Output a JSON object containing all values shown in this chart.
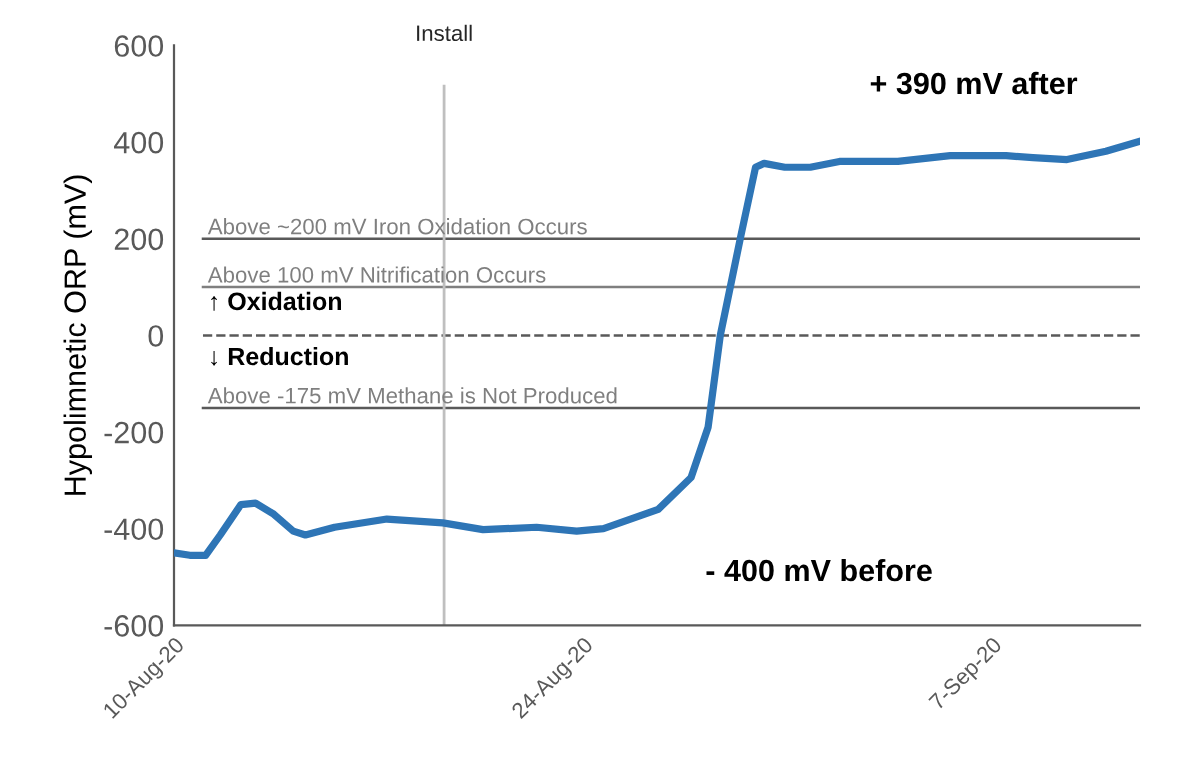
{
  "chart_data": {
    "type": "line",
    "ylabel": "Hypolimnetic ORP (mV)",
    "x": [
      "2020-08-10T00:00",
      "2020-08-10T13:00",
      "2020-08-11T02:00",
      "2020-08-11T14:00",
      "2020-08-12T07:00",
      "2020-08-12T19:00",
      "2020-08-13T10:00",
      "2020-08-14T02:00",
      "2020-08-14T12:00",
      "2020-08-15T12:00",
      "2020-08-17T07:00",
      "2020-08-19T05:00",
      "2020-08-20T14:00",
      "2020-08-22T10:00",
      "2020-08-23T19:00",
      "2020-08-24T17:00",
      "2020-08-26T14:00",
      "2020-08-27T17:00",
      "2020-08-28T07:00",
      "2020-08-28T17:00",
      "2020-08-29T10:00",
      "2020-08-29T22:00",
      "2020-08-30T05:00",
      "2020-08-30T22:00",
      "2020-08-31T19:00",
      "2020-09-01T19:00",
      "2020-09-03T19:00",
      "2020-09-05T14:00",
      "2020-09-07T12:00",
      "2020-09-08T10:00",
      "2020-09-09T14:00",
      "2020-09-10T22:00",
      "2020-09-12T02:00"
    ],
    "series": [
      {
        "color": "#2e75b6",
        "values": [
          -450,
          -455,
          -455,
          -413,
          -350,
          -347,
          -370,
          -405,
          -413,
          -397,
          -380,
          -388,
          -402,
          -397,
          -405,
          -400,
          -360,
          -294,
          -190,
          0,
          207,
          348,
          356,
          348,
          348,
          360,
          360,
          372,
          372,
          368,
          364,
          381,
          402
        ]
      }
    ],
    "xlim": [
      "2020-08-10",
      "2020-09-12T02:00"
    ],
    "xticks": [
      {
        "value": "2020-08-10",
        "label": "10-Aug-20"
      },
      {
        "value": "2020-08-24",
        "label": "24-Aug-20"
      },
      {
        "value": "2020-09-07",
        "label": "7-Sep-20"
      }
    ],
    "ylim": [
      -600,
      600
    ],
    "yticks": [
      -600,
      -400,
      -200,
      0,
      200,
      400,
      600
    ],
    "ref_lines": [
      {
        "axis": "y",
        "value": 200,
        "label": "Above ~200 mV Iron Oxidation Occurs",
        "color": "#595959"
      },
      {
        "axis": "y",
        "value": 100,
        "label": "Above 100 mV Nitrification Occurs",
        "color": "#7f7f7f"
      },
      {
        "axis": "y",
        "value": 0,
        "color": "#595959",
        "line_style": "dashed"
      },
      {
        "axis": "y",
        "value": -150,
        "label": "Above -175 mV Methane is Not Produced",
        "color": "#595959"
      },
      {
        "axis": "x",
        "value": "2020-08-19T06:00",
        "label": "Install",
        "color": "#bfbfbf"
      }
    ],
    "annotations": [
      "+ 390 mV after",
      "- 400 mV before",
      "↑ Oxidation",
      "↓ Reduction"
    ],
    "grid": false,
    "marker": "none",
    "line_style": "solid",
    "legend": false
  }
}
